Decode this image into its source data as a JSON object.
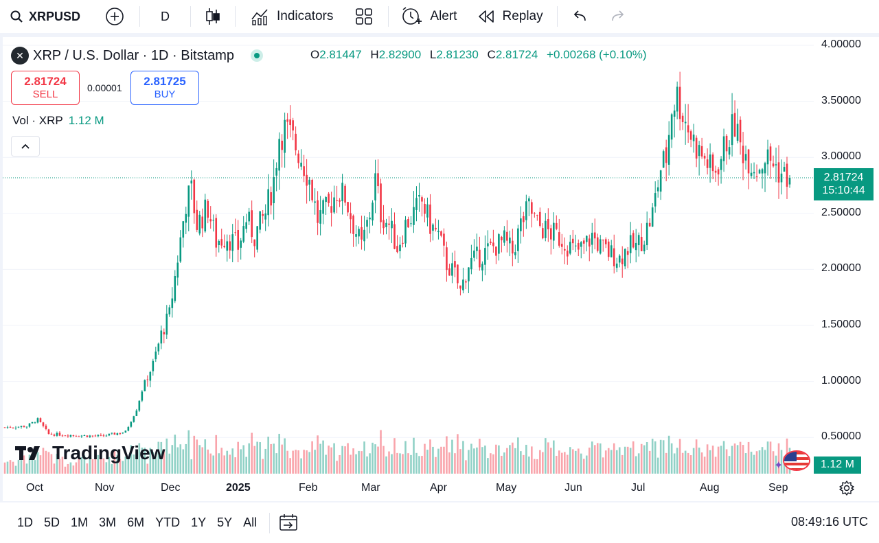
{
  "toolbar": {
    "symbol": "XRPUSD",
    "interval": "D",
    "indicators_label": "Indicators",
    "alert_label": "Alert",
    "replay_label": "Replay"
  },
  "legend": {
    "title": "XRP / U.S. Dollar · 1D · Bitstamp",
    "logo_text": "✕",
    "open_key": "O",
    "open": "2.81447",
    "high_key": "H",
    "high": "2.82900",
    "low_key": "L",
    "low": "2.81230",
    "close_key": "C",
    "close": "2.81724",
    "change": "+0.00268 (+0.10%)"
  },
  "trade": {
    "sell_price": "2.81724",
    "sell_label": "SELL",
    "spread": "0.00001",
    "buy_price": "2.81725",
    "buy_label": "BUY"
  },
  "volume": {
    "label": "Vol · XRP",
    "value": "1.12 M"
  },
  "price_axis": {
    "labels": [
      "4.00000",
      "3.50000",
      "3.00000",
      "2.50000",
      "2.00000",
      "1.50000",
      "1.00000",
      "0.50000"
    ],
    "last_price": "2.81724",
    "countdown": "15:10:44",
    "volume_badge": "1.12 M"
  },
  "time_axis": {
    "labels": [
      "Oct",
      "Nov",
      "Dec",
      "2025",
      "Feb",
      "Mar",
      "Apr",
      "May",
      "Jun",
      "Jul",
      "Aug",
      "Sep"
    ]
  },
  "brand": {
    "name": "TradingView"
  },
  "bottom_bar": {
    "ranges": [
      "1D",
      "5D",
      "1M",
      "3M",
      "6M",
      "YTD",
      "1Y",
      "5Y",
      "All"
    ],
    "utc_time": "08:49:16 UTC"
  },
  "colors": {
    "up": "#089981",
    "down": "#f23645",
    "accent": "#2962ff"
  },
  "chart_data": {
    "type": "candlestick",
    "title": "XRP / U.S. Dollar · 1D · Bitstamp",
    "ylim": [
      0.3,
      4.05
    ],
    "x_labels": [
      "Oct",
      "Nov",
      "Dec",
      "2025",
      "Feb",
      "Mar",
      "Apr",
      "May",
      "Jun",
      "Jul",
      "Aug",
      "Sep"
    ],
    "close_path": [
      [
        0,
        0.59
      ],
      [
        8,
        0.6
      ],
      [
        12,
        0.66
      ],
      [
        16,
        0.53
      ],
      [
        25,
        0.52
      ],
      [
        35,
        0.51
      ],
      [
        44,
        0.55
      ],
      [
        48,
        0.75
      ],
      [
        51,
        1.0
      ],
      [
        54,
        1.15
      ],
      [
        57,
        1.42
      ],
      [
        60,
        1.6
      ],
      [
        63,
        2.1
      ],
      [
        66,
        2.6
      ],
      [
        68,
        2.7
      ],
      [
        70,
        2.4
      ],
      [
        74,
        2.55
      ],
      [
        77,
        2.25
      ],
      [
        81,
        2.3
      ],
      [
        85,
        2.2
      ],
      [
        88,
        2.45
      ],
      [
        91,
        2.3
      ],
      [
        95,
        2.5
      ],
      [
        98,
        2.8
      ],
      [
        100,
        3.2
      ],
      [
        102,
        3.25
      ],
      [
        105,
        3.15
      ],
      [
        108,
        3.0
      ],
      [
        111,
        2.8
      ],
      [
        114,
        2.45
      ],
      [
        118,
        2.55
      ],
      [
        121,
        2.7
      ],
      [
        124,
        2.65
      ],
      [
        127,
        2.4
      ],
      [
        130,
        2.2
      ],
      [
        133,
        2.5
      ],
      [
        135,
        2.8
      ],
      [
        137,
        2.5
      ],
      [
        140,
        2.4
      ],
      [
        143,
        2.2
      ],
      [
        146,
        2.4
      ],
      [
        149,
        2.5
      ],
      [
        152,
        2.6
      ],
      [
        155,
        2.4
      ],
      [
        158,
        2.3
      ],
      [
        161,
        2.05
      ],
      [
        164,
        1.95
      ],
      [
        166,
        1.8
      ],
      [
        169,
        2.05
      ],
      [
        172,
        2.1
      ],
      [
        175,
        2.15
      ],
      [
        178,
        2.2
      ],
      [
        182,
        2.25
      ],
      [
        185,
        2.15
      ],
      [
        188,
        2.4
      ],
      [
        191,
        2.55
      ],
      [
        194,
        2.4
      ],
      [
        197,
        2.35
      ],
      [
        201,
        2.3
      ],
      [
        204,
        2.25
      ],
      [
        208,
        2.15
      ],
      [
        211,
        2.2
      ],
      [
        214,
        2.3
      ],
      [
        217,
        2.2
      ],
      [
        220,
        2.15
      ],
      [
        224,
        2.1
      ],
      [
        227,
        2.2
      ],
      [
        230,
        2.2
      ],
      [
        233,
        2.3
      ],
      [
        236,
        2.5
      ],
      [
        239,
        2.9
      ],
      [
        241,
        3.0
      ],
      [
        243,
        3.45
      ],
      [
        245,
        3.55
      ],
      [
        247,
        3.4
      ],
      [
        250,
        3.2
      ],
      [
        253,
        3.05
      ],
      [
        256,
        2.95
      ],
      [
        258,
        2.85
      ],
      [
        261,
        3.0
      ],
      [
        263,
        3.15
      ],
      [
        266,
        3.3
      ],
      [
        268,
        3.1
      ],
      [
        271,
        3.0
      ],
      [
        274,
        2.9
      ],
      [
        277,
        3.0
      ],
      [
        280,
        2.95
      ],
      [
        283,
        2.85
      ],
      [
        286,
        2.81724
      ]
    ],
    "volume_range": [
      0,
      1.12
    ]
  }
}
